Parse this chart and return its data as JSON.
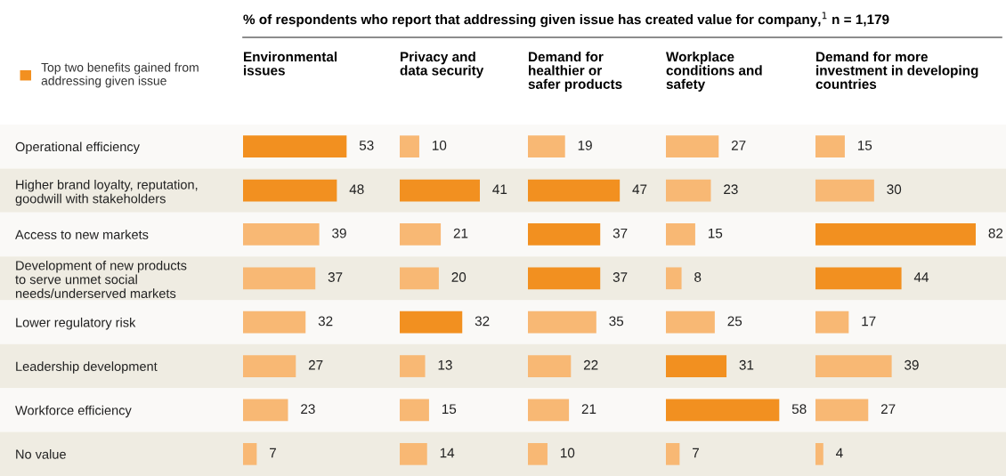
{
  "chart_data": [
    {
      "type": "bar",
      "orientation": "horizontal",
      "title": "% of respondents who report that addressing given issue has created value for company,$^{1}$ n = 1,179",
      "subtitle": "Environmental\nissues",
      "categories": [
        "Operational efficiency",
        "Higher brand loyalty, reputation,\ngoodwill with stakeholders",
        "Access to new markets",
        "Development of new products\nto serve unmet social\nneeds/underserved markets",
        "Lower regulatory risk",
        "Leadership development",
        "Workforce efficiency",
        "No value"
      ],
      "series": [
        {
          "name": "Top two benefits gained from\naddressing given issue",
          "color": "#f29020",
          "values": [
            53,
            48,
            null,
            null,
            null,
            null,
            null,
            null
          ]
        },
        {
          "color": "#f8b874",
          "values": [
            null,
            null,
            39,
            37,
            32,
            27,
            23,
            7
          ]
        }
      ],
      "data_labels": true,
      "legend": "top left",
      "tick_labels": "y"
    },
    {
      "type": "bar",
      "orientation": "horizontal",
      "subtitle": "Privacy and\ndata security",
      "series": [
        {
          "color": "#f29020",
          "values": [
            null,
            41,
            null,
            null,
            32,
            null,
            null,
            null
          ]
        },
        {
          "color": "#f8b874",
          "values": [
            10,
            null,
            21,
            20,
            null,
            13,
            15,
            14
          ]
        }
      ],
      "data_labels": true,
      "tick_labels": false
    },
    {
      "type": "bar",
      "orientation": "horizontal",
      "subtitle": "Demand for\nhealthier or\nsafer products",
      "series": [
        {
          "color": "#f29020",
          "values": [
            null,
            47,
            37,
            37,
            null,
            null,
            null,
            null
          ]
        },
        {
          "color": "#f8b874",
          "values": [
            19,
            null,
            null,
            null,
            35,
            22,
            21,
            10
          ]
        }
      ],
      "data_labels": true,
      "tick_labels": false
    },
    {
      "type": "bar",
      "orientation": "horizontal",
      "subtitle": "Workplace\nconditions and\nsafety",
      "series": [
        {
          "color": "#f29020",
          "values": [
            null,
            null,
            null,
            null,
            null,
            31,
            58,
            null
          ]
        },
        {
          "color": "#f8b874",
          "values": [
            27,
            23,
            15,
            8,
            25,
            null,
            null,
            7
          ]
        }
      ],
      "data_labels": true,
      "tick_labels": false
    },
    {
      "type": "bar",
      "orientation": "horizontal",
      "subtitle": "Demand for more\ninvestment in developing\ncountries",
      "series": [
        {
          "color": "#f29020",
          "values": [
            null,
            null,
            82,
            44,
            null,
            null,
            null,
            null
          ]
        },
        {
          "color": "#f8b874",
          "values": [
            15,
            30,
            null,
            null,
            17,
            39,
            27,
            4
          ]
        }
      ],
      "data_labels": true,
      "tick_labels": false
    }
  ]
}
